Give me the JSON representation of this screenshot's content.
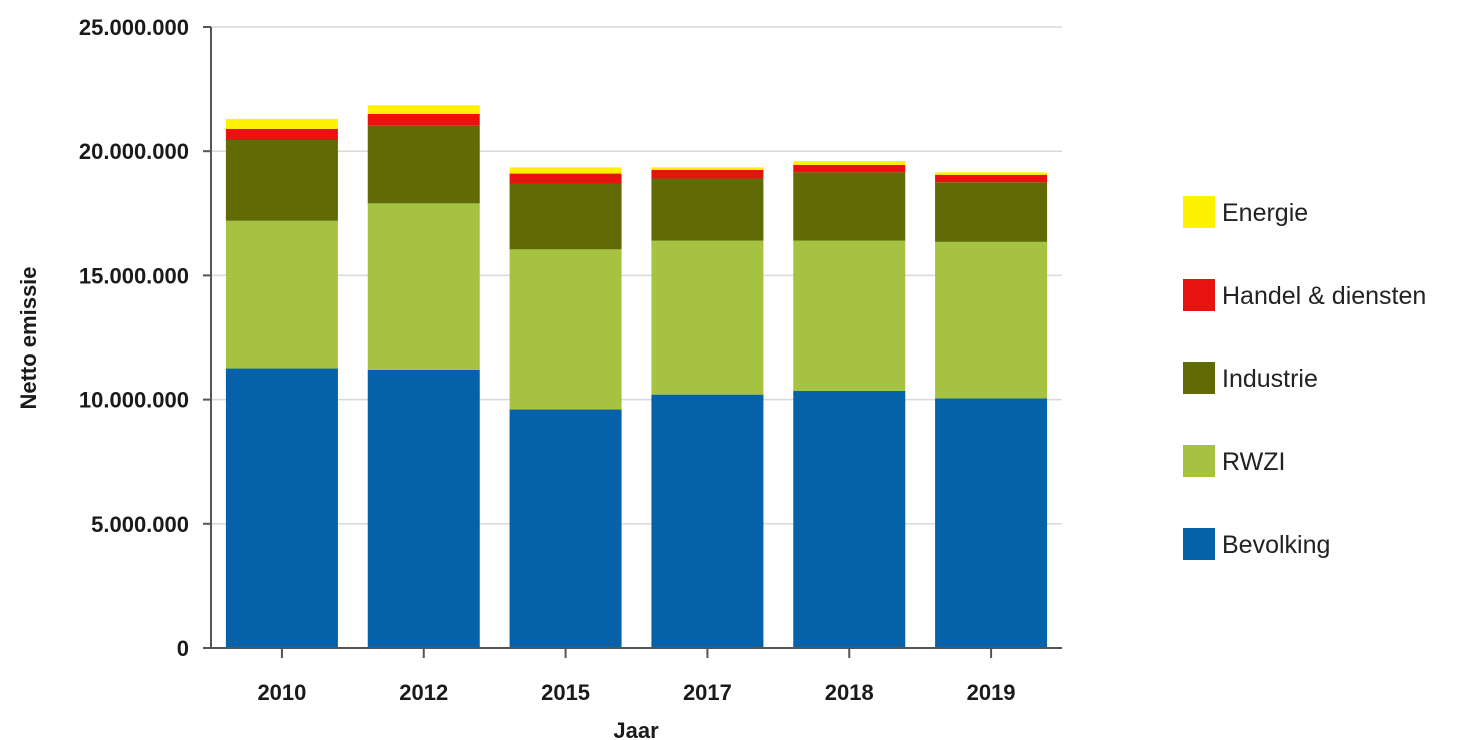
{
  "chart_data": {
    "type": "bar",
    "stacked": true,
    "title": "",
    "xlabel": "Jaar",
    "ylabel": "Netto emissie",
    "categories": [
      "2010",
      "2012",
      "2015",
      "2017",
      "2018",
      "2019"
    ],
    "ylim": [
      0,
      25000000
    ],
    "yticks": [
      0,
      5000000,
      10000000,
      15000000,
      20000000,
      25000000
    ],
    "ytick_labels": [
      "0",
      "5.000.000",
      "10.000.000",
      "15.000.000",
      "20.000.000",
      "25.000.000"
    ],
    "grid": true,
    "legend_position": "right",
    "series": [
      {
        "name": "Bevolking",
        "color": "#0561a8",
        "values": [
          11250000,
          11200000,
          9600000,
          10200000,
          10350000,
          10050000
        ]
      },
      {
        "name": "RWZI",
        "color": "#a5c241",
        "values": [
          5950000,
          6700000,
          6450000,
          6200000,
          6050000,
          6300000
        ]
      },
      {
        "name": "Industrie",
        "color": "#606b05",
        "values": [
          3250000,
          3150000,
          2650000,
          2500000,
          2750000,
          2400000
        ]
      },
      {
        "name": "Handel & diensten",
        "color": "#e81210",
        "values": [
          450000,
          450000,
          400000,
          350000,
          300000,
          300000
        ]
      },
      {
        "name": "Energie",
        "color": "#fff200",
        "values": [
          400000,
          350000,
          250000,
          100000,
          150000,
          100000
        ]
      }
    ],
    "legend_order": [
      "Energie",
      "Handel & diensten",
      "Industrie",
      "RWZI",
      "Bevolking"
    ]
  }
}
